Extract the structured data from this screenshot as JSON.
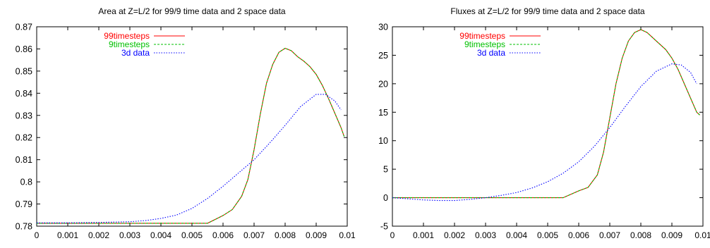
{
  "chart_data": [
    {
      "type": "line",
      "title": "Area at Z=L/2 for 99/9 time data and 2 space data",
      "xlabel": "",
      "ylabel": "",
      "xlim": [
        0,
        0.01
      ],
      "ylim": [
        0.78,
        0.87
      ],
      "grid": false,
      "legend_position": "top-left",
      "x_ticks": [
        "0",
        "0.001",
        "0.002",
        "0.003",
        "0.004",
        "0.005",
        "0.006",
        "0.007",
        "0.008",
        "0.009",
        "0.01"
      ],
      "y_ticks": [
        "0.78",
        "0.79",
        "0.8",
        "0.81",
        "0.82",
        "0.83",
        "0.84",
        "0.85",
        "0.86",
        "0.87"
      ],
      "series": [
        {
          "name": "99timesteps",
          "color": "#ff0000",
          "style": "solid",
          "x": [
            0,
            0.001,
            0.002,
            0.003,
            0.004,
            0.005,
            0.0055,
            0.006,
            0.0063,
            0.0066,
            0.0068,
            0.007,
            0.0072,
            0.0074,
            0.0076,
            0.0078,
            0.008,
            0.0082,
            0.0084,
            0.0086,
            0.0088,
            0.009,
            0.0092,
            0.0094,
            0.0096,
            0.0098,
            0.0099
          ],
          "values": [
            0.7813,
            0.7813,
            0.7813,
            0.7813,
            0.7813,
            0.7813,
            0.7813,
            0.7848,
            0.7875,
            0.7935,
            0.801,
            0.8145,
            0.8305,
            0.8445,
            0.853,
            0.8585,
            0.8603,
            0.8592,
            0.8565,
            0.8545,
            0.852,
            0.8485,
            0.8435,
            0.8375,
            0.831,
            0.8245,
            0.8205
          ]
        },
        {
          "name": "9timesteps",
          "color": "#00c000",
          "style": "dashed",
          "x": [
            0,
            0.001,
            0.002,
            0.003,
            0.004,
            0.005,
            0.0055,
            0.006,
            0.0063,
            0.0066,
            0.0068,
            0.007,
            0.0072,
            0.0074,
            0.0076,
            0.0078,
            0.008,
            0.0082,
            0.0084,
            0.0086,
            0.0088,
            0.009,
            0.0092,
            0.0094,
            0.0096,
            0.0098,
            0.0099
          ],
          "values": [
            0.7813,
            0.7813,
            0.7813,
            0.7813,
            0.7813,
            0.7813,
            0.7813,
            0.7848,
            0.7875,
            0.7935,
            0.801,
            0.8145,
            0.8305,
            0.8445,
            0.853,
            0.8585,
            0.8603,
            0.8592,
            0.8565,
            0.8545,
            0.852,
            0.8485,
            0.8435,
            0.8375,
            0.831,
            0.8245,
            0.8205
          ]
        },
        {
          "name": "3d data",
          "color": "#0000ff",
          "style": "dotted",
          "x": [
            0,
            0.001,
            0.002,
            0.003,
            0.0035,
            0.004,
            0.0045,
            0.005,
            0.0055,
            0.006,
            0.0065,
            0.007,
            0.0075,
            0.008,
            0.0085,
            0.009,
            0.0093,
            0.0096,
            0.0098
          ],
          "values": [
            0.7815,
            0.7815,
            0.7817,
            0.782,
            0.7825,
            0.7835,
            0.785,
            0.788,
            0.7925,
            0.798,
            0.804,
            0.81,
            0.8175,
            0.8255,
            0.834,
            0.8395,
            0.8395,
            0.8365,
            0.8325
          ]
        }
      ]
    },
    {
      "type": "line",
      "title": "Fluxes at Z=L/2 for 99/9 time data and 2 space data",
      "xlabel": "",
      "ylabel": "",
      "xlim": [
        0,
        0.01
      ],
      "ylim": [
        -5,
        30
      ],
      "grid": false,
      "legend_position": "top-left",
      "x_ticks": [
        "0",
        "0.001",
        "0.002",
        "0.003",
        "0.004",
        "0.005",
        "0.006",
        "0.007",
        "0.008",
        "0.009",
        "0.01"
      ],
      "y_ticks": [
        "-5",
        "0",
        "5",
        "10",
        "15",
        "20",
        "25",
        "30"
      ],
      "series": [
        {
          "name": "99timesteps",
          "color": "#ff0000",
          "style": "solid",
          "x": [
            0,
            0.001,
            0.002,
            0.003,
            0.004,
            0.005,
            0.0055,
            0.006,
            0.0063,
            0.0066,
            0.0068,
            0.007,
            0.0072,
            0.0074,
            0.0076,
            0.0078,
            0.008,
            0.0082,
            0.0084,
            0.0086,
            0.0088,
            0.009,
            0.0092,
            0.0094,
            0.0096,
            0.0098,
            0.0099
          ],
          "values": [
            0,
            0,
            0,
            0,
            0,
            0,
            0,
            1.2,
            1.8,
            4.0,
            8.0,
            14.0,
            20.0,
            24.5,
            27.5,
            29.0,
            29.5,
            29.0,
            28.0,
            27.0,
            26.0,
            24.5,
            22.5,
            20.0,
            17.5,
            15.0,
            14.5
          ]
        },
        {
          "name": "9timesteps",
          "color": "#00c000",
          "style": "dashed",
          "x": [
            0,
            0.001,
            0.002,
            0.003,
            0.004,
            0.005,
            0.0055,
            0.006,
            0.0063,
            0.0066,
            0.0068,
            0.007,
            0.0072,
            0.0074,
            0.0076,
            0.0078,
            0.008,
            0.0082,
            0.0084,
            0.0086,
            0.0088,
            0.009,
            0.0092,
            0.0094,
            0.0096,
            0.0098,
            0.0099
          ],
          "values": [
            0,
            0,
            0,
            0,
            0,
            0,
            0,
            1.2,
            1.8,
            4.0,
            8.0,
            14.0,
            20.0,
            24.5,
            27.5,
            29.0,
            29.5,
            29.0,
            28.0,
            27.0,
            26.0,
            24.5,
            22.5,
            20.0,
            17.5,
            15.0,
            14.5
          ]
        },
        {
          "name": "3d data",
          "color": "#0000ff",
          "style": "dotted",
          "x": [
            0,
            0.0005,
            0.001,
            0.0015,
            0.002,
            0.0025,
            0.003,
            0.0035,
            0.004,
            0.0045,
            0.005,
            0.0055,
            0.006,
            0.0065,
            0.007,
            0.0075,
            0.008,
            0.0085,
            0.009,
            0.0093,
            0.0096,
            0.0098
          ],
          "values": [
            0,
            -0.2,
            -0.4,
            -0.5,
            -0.5,
            -0.3,
            0,
            0.4,
            0.9,
            1.7,
            2.8,
            4.3,
            6.3,
            9.0,
            12.3,
            16.0,
            19.5,
            22.2,
            23.5,
            23.3,
            22.0,
            20.0
          ]
        }
      ]
    }
  ]
}
